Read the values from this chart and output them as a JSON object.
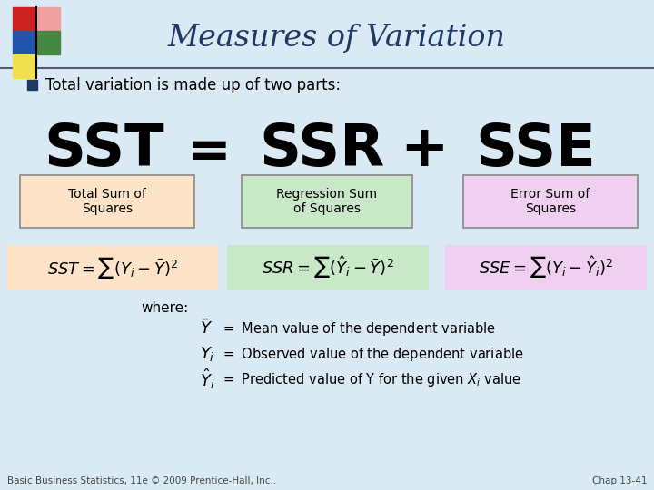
{
  "title": "Measures of Variation",
  "bg_color": "#daeaf4",
  "title_color": "#1f3864",
  "bullet_text": "Total variation is made up of two parts:",
  "bullet_color": "#1f3864",
  "bullet_square_color": "#1f3864",
  "box1_label": "Total Sum of\nSquares",
  "box2_label": "Regression Sum\nof Squares",
  "box3_label": "Error Sum of\nSquares",
  "box1_color": "#fde4c8",
  "box2_color": "#c8e8c8",
  "box3_color": "#f0d0f0",
  "box_border_color": "#888888",
  "formula1_bg": "#fde4c8",
  "formula2_bg": "#c8e8c8",
  "formula3_bg": "#f0d0f0",
  "where_text": "where:",
  "footer_left": "Basic Business Statistics, 11e © 2009 Prentice-Hall, Inc..",
  "footer_right": "Chap 13-41",
  "footer_color": "#444444",
  "logo_red": "#cc2222",
  "logo_pink": "#f0a0a0",
  "logo_blue": "#2255aa",
  "logo_green": "#448844",
  "logo_yellow": "#f0e050",
  "line_color": "#555577"
}
